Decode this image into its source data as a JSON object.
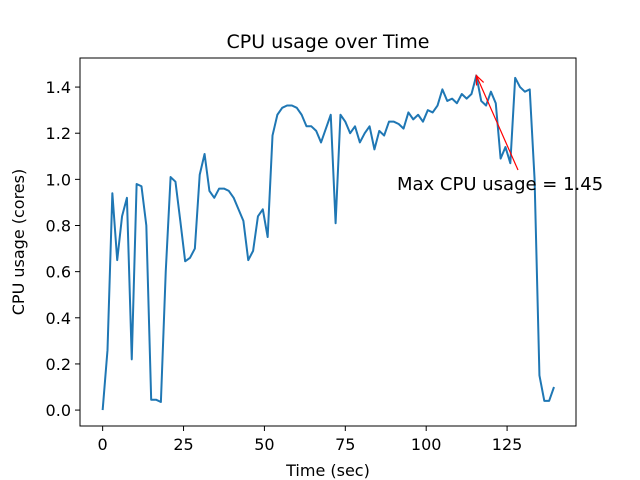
{
  "chart_data": {
    "type": "line",
    "title": "CPU usage over Time",
    "x_label": "Time (sec)",
    "y_label": "CPU usage (cores)",
    "x": [
      0,
      1.5,
      3,
      4.5,
      6,
      7.5,
      9,
      10.5,
      12,
      13.5,
      15,
      16.5,
      18,
      19.5,
      21,
      22.5,
      24,
      25.5,
      27,
      28.5,
      30,
      31.5,
      33,
      34.5,
      36,
      37.5,
      39,
      40.5,
      42,
      43.5,
      45,
      46.5,
      48,
      49.5,
      51,
      52.5,
      54,
      55.5,
      57,
      58.5,
      60,
      61.5,
      63,
      64.5,
      66,
      67.5,
      69,
      70.5,
      72,
      73.5,
      75,
      76.5,
      78,
      79.5,
      81,
      82.5,
      84,
      85.5,
      87,
      88.5,
      90,
      91.5,
      93,
      94.5,
      96,
      97.5,
      99,
      100.5,
      102,
      103.5,
      105,
      106.5,
      108,
      109.5,
      111,
      112.5,
      114,
      115.5,
      117,
      118.5,
      120,
      121.5,
      123,
      124.5,
      126,
      127.5,
      129,
      130.5,
      132,
      133.5,
      135,
      136.5,
      138,
      139.5
    ],
    "series": [
      {
        "name": "CPU usage",
        "color": "#1f77b4",
        "values": [
          0.0,
          0.26,
          0.94,
          0.65,
          0.84,
          0.92,
          0.22,
          0.98,
          0.97,
          0.8,
          0.045,
          0.045,
          0.035,
          0.6,
          1.01,
          0.99,
          0.82,
          0.645,
          0.66,
          0.7,
          1.02,
          1.11,
          0.95,
          0.92,
          0.96,
          0.96,
          0.95,
          0.92,
          0.87,
          0.82,
          0.65,
          0.69,
          0.84,
          0.87,
          0.75,
          1.19,
          1.28,
          1.31,
          1.32,
          1.32,
          1.31,
          1.28,
          1.23,
          1.23,
          1.21,
          1.16,
          1.22,
          1.28,
          0.81,
          1.28,
          1.25,
          1.2,
          1.23,
          1.16,
          1.2,
          1.23,
          1.13,
          1.21,
          1.19,
          1.25,
          1.25,
          1.24,
          1.22,
          1.29,
          1.26,
          1.28,
          1.25,
          1.3,
          1.29,
          1.32,
          1.39,
          1.34,
          1.35,
          1.33,
          1.37,
          1.35,
          1.37,
          1.45,
          1.34,
          1.32,
          1.38,
          1.33,
          1.09,
          1.14,
          1.07,
          1.44,
          1.4,
          1.38,
          1.39,
          1.0,
          0.15,
          0.04,
          0.04,
          0.1
        ]
      }
    ],
    "annotation": {
      "text": "Max CPU usage = 1.45",
      "color": "#ff0000"
    },
    "xlim": [
      -7,
      146.3
    ],
    "ylim": [
      -0.069,
      1.526
    ],
    "xticks": [
      0,
      25,
      50,
      75,
      100,
      125
    ],
    "yticks": [
      {
        "value": 0.0,
        "label": "0.0"
      },
      0.2,
      0.4,
      0.6,
      0.8,
      {
        "value": 1.0,
        "label": "1.0"
      },
      1.2,
      1.4
    ]
  }
}
